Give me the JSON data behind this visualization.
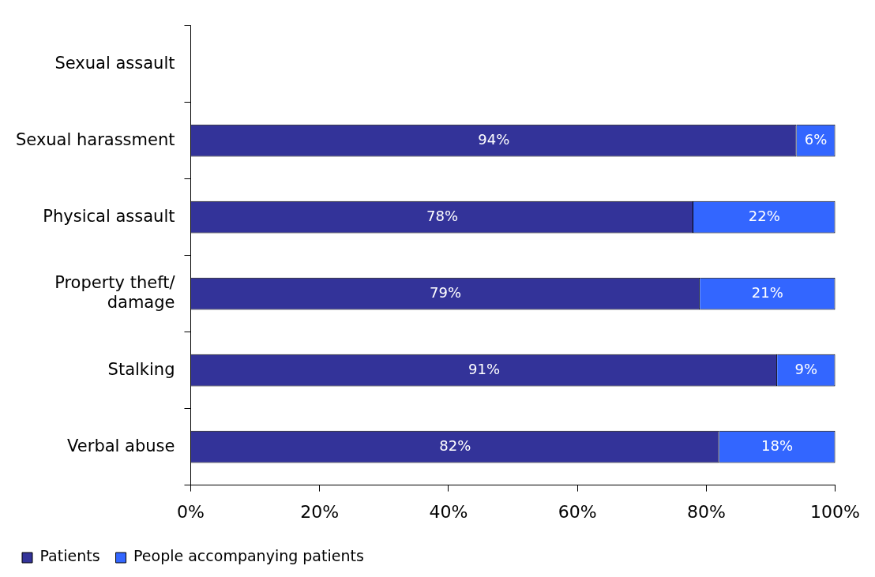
{
  "chart_data": {
    "type": "bar",
    "orientation": "horizontal",
    "stacked": true,
    "categories": [
      "Sexual assault",
      "Sexual harassment",
      "Physical assault",
      "Property theft/ damage",
      "Stalking",
      "Verbal abuse"
    ],
    "series": [
      {
        "name": "Patients",
        "color": "#333399",
        "values": [
          null,
          94,
          78,
          79,
          91,
          82
        ],
        "value_labels": [
          null,
          "94%",
          "78%",
          "79%",
          "91%",
          "82%"
        ]
      },
      {
        "name": "People accompanying patients",
        "color": "#3366ff",
        "values": [
          null,
          6,
          22,
          21,
          9,
          18
        ],
        "value_labels": [
          null,
          "6%",
          "22%",
          "21%",
          "9%",
          "18%"
        ]
      }
    ],
    "xlim": [
      0,
      100
    ],
    "xticks": [
      {
        "value": 0,
        "label": "0%"
      },
      {
        "value": 20,
        "label": "20%"
      },
      {
        "value": 40,
        "label": "40%"
      },
      {
        "value": 60,
        "label": "60%"
      },
      {
        "value": 80,
        "label": "80%"
      },
      {
        "value": 100,
        "label": "100%"
      }
    ],
    "grid": false,
    "legend": "bottom"
  }
}
